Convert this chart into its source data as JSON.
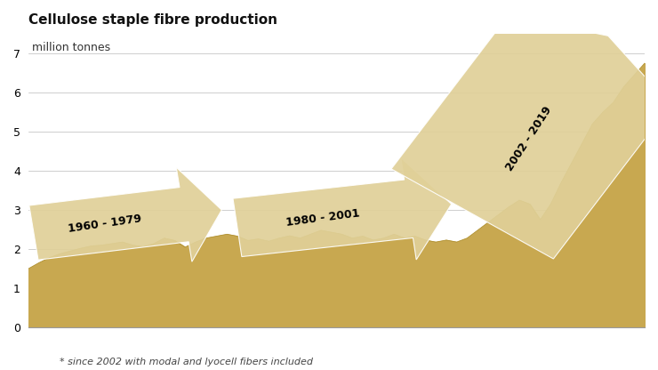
{
  "title": "Cellulose staple fibre production",
  "ylabel": "million tonnes",
  "footnote": "* since 2002 with modal and lyocell fibers included",
  "fill_color": "#C8A850",
  "fill_edge_color": "#B09030",
  "arrow_color": "#E0D098",
  "bg_color": "#FFFFFF",
  "grid_color": "#BBBBBB",
  "ylim": [
    0,
    7.5
  ],
  "yticks": [
    0,
    1,
    2,
    3,
    4,
    5,
    6,
    7
  ],
  "years": [
    1960,
    1961,
    1962,
    1963,
    1964,
    1965,
    1966,
    1967,
    1968,
    1969,
    1970,
    1971,
    1972,
    1973,
    1974,
    1975,
    1976,
    1977,
    1978,
    1979,
    1980,
    1981,
    1982,
    1983,
    1984,
    1985,
    1986,
    1987,
    1988,
    1989,
    1990,
    1991,
    1992,
    1993,
    1994,
    1995,
    1996,
    1997,
    1998,
    1999,
    2000,
    2001,
    2002,
    2003,
    2004,
    2005,
    2006,
    2007,
    2008,
    2009,
    2010,
    2011,
    2012,
    2013,
    2014,
    2015,
    2016,
    2017,
    2018,
    2019
  ],
  "values": [
    1.5,
    1.65,
    1.78,
    1.88,
    1.95,
    2.02,
    2.08,
    2.1,
    2.14,
    2.18,
    2.1,
    2.06,
    2.14,
    2.28,
    2.22,
    2.05,
    2.18,
    2.28,
    2.33,
    2.38,
    2.33,
    2.22,
    2.26,
    2.2,
    2.28,
    2.34,
    2.28,
    2.38,
    2.48,
    2.43,
    2.38,
    2.28,
    2.33,
    2.23,
    2.28,
    2.38,
    2.28,
    2.33,
    2.23,
    2.18,
    2.23,
    2.18,
    2.28,
    2.48,
    2.68,
    2.88,
    3.08,
    3.25,
    3.15,
    2.75,
    3.15,
    3.7,
    4.2,
    4.7,
    5.2,
    5.5,
    5.75,
    6.15,
    6.45,
    6.75
  ],
  "title_fontsize": 11,
  "label_fontsize": 9,
  "tick_fontsize": 9,
  "footnote_fontsize": 8,
  "arrow1_label": "1960 - 1979",
  "arrow2_label": "1980 - 2001",
  "arrow3_label": "2002 - 2019"
}
